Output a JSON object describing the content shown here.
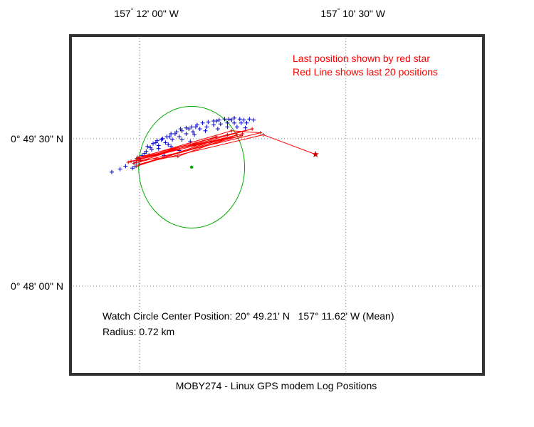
{
  "chart_data": {
    "type": "scatter",
    "title": "MOBY274 - Linux GPS modem Log Positions",
    "xlabel": "",
    "ylabel": "",
    "x_axis": {
      "unit": "minutes of longitude past 157 deg W",
      "ticks": [
        {
          "value": 12.0,
          "deg": "157",
          "min": "12' 00\" W"
        },
        {
          "value": 10.5,
          "deg": "157",
          "min": "10' 30\" W"
        }
      ],
      "xlim": [
        12.5,
        9.5
      ],
      "tick_label_position": "top"
    },
    "y_axis": {
      "unit": "minutes of latitude past 20 deg N",
      "ticks": [
        {
          "value": 49.5,
          "label": "0° 49' 30\" N"
        },
        {
          "value": 48.0,
          "label": "0° 48' 00\" N"
        }
      ],
      "ylim": [
        47.1,
        50.55
      ]
    },
    "grid": true,
    "annotations": [
      {
        "text": "Last position shown by red star",
        "color": "#ff0000"
      },
      {
        "text": "Red Line shows last 20 positions",
        "color": "#ff0000"
      }
    ],
    "info_lines": [
      "Watch Circle Center Position: 20° 49.21' N   157° 11.62' W (Mean)",
      "Radius: 0.72 km"
    ],
    "watch_circle": {
      "center_lon_min": 11.62,
      "center_lat_min": 49.21,
      "radius_lat_min": 0.62,
      "radius_lon_min": 0.385,
      "color": "#00aa00"
    },
    "series": [
      {
        "marker": "plus",
        "color": "#0000cc",
        "points": [
          [
            12.2,
            49.16
          ],
          [
            12.14,
            49.19
          ],
          [
            12.1,
            49.22
          ],
          [
            12.05,
            49.2
          ],
          [
            12.02,
            49.26
          ],
          [
            11.98,
            49.33
          ],
          [
            11.95,
            49.37
          ],
          [
            11.92,
            49.41
          ],
          [
            11.9,
            49.45
          ],
          [
            11.87,
            49.48
          ],
          [
            11.83,
            49.5
          ],
          [
            11.8,
            49.52
          ],
          [
            11.77,
            49.55
          ],
          [
            11.73,
            49.57
          ],
          [
            11.7,
            49.6
          ],
          [
            11.66,
            49.61
          ],
          [
            11.62,
            49.62
          ],
          [
            11.58,
            49.64
          ],
          [
            11.54,
            49.66
          ],
          [
            11.5,
            49.67
          ],
          [
            11.46,
            49.68
          ],
          [
            11.42,
            49.69
          ],
          [
            11.38,
            49.7
          ],
          [
            11.35,
            49.7
          ],
          [
            11.31,
            49.71
          ],
          [
            11.27,
            49.7
          ],
          [
            11.24,
            49.69
          ],
          [
            11.2,
            49.7
          ],
          [
            11.17,
            49.69
          ],
          [
            12.0,
            49.3
          ],
          [
            11.96,
            49.35
          ],
          [
            11.91,
            49.39
          ],
          [
            11.86,
            49.43
          ],
          [
            11.81,
            49.46
          ],
          [
            11.76,
            49.49
          ],
          [
            11.71,
            49.52
          ],
          [
            11.66,
            49.55
          ],
          [
            11.61,
            49.57
          ],
          [
            11.56,
            49.6
          ],
          [
            11.51,
            49.62
          ],
          [
            11.46,
            49.64
          ],
          [
            11.41,
            49.65
          ],
          [
            11.36,
            49.66
          ],
          [
            11.31,
            49.66
          ],
          [
            11.26,
            49.66
          ],
          [
            11.94,
            49.42
          ],
          [
            11.88,
            49.46
          ],
          [
            11.84,
            49.49
          ],
          [
            11.78,
            49.52
          ],
          [
            11.74,
            49.55
          ],
          [
            11.69,
            49.58
          ],
          [
            11.64,
            49.6
          ],
          [
            11.59,
            49.62
          ],
          [
            11.44,
            49.68
          ],
          [
            11.33,
            49.69
          ],
          [
            11.22,
            49.66
          ],
          [
            11.99,
            49.28
          ],
          [
            12.03,
            49.22
          ],
          [
            11.93,
            49.33
          ],
          [
            11.86,
            49.4
          ],
          [
            11.79,
            49.44
          ],
          [
            11.69,
            49.49
          ],
          [
            11.6,
            49.54
          ],
          [
            11.52,
            49.58
          ],
          [
            11.43,
            49.6
          ],
          [
            11.36,
            49.62
          ],
          [
            11.29,
            49.62
          ],
          [
            11.23,
            49.61
          ],
          [
            11.77,
            49.42
          ],
          [
            11.63,
            49.47
          ],
          [
            11.82,
            49.33
          ],
          [
            11.71,
            49.38
          ]
        ]
      },
      {
        "marker": "plus",
        "color": "#cc0000",
        "line": true,
        "points": [
          [
            12.01,
            49.31
          ],
          [
            11.36,
            49.54
          ],
          [
            11.18,
            49.6
          ],
          [
            12.08,
            49.26
          ],
          [
            11.25,
            49.55
          ],
          [
            12.02,
            49.3
          ],
          [
            11.33,
            49.58
          ],
          [
            11.12,
            49.56
          ],
          [
            12.04,
            49.25
          ],
          [
            11.44,
            49.52
          ],
          [
            12.06,
            49.27
          ],
          [
            11.72,
            49.32
          ],
          [
            11.29,
            49.54
          ],
          [
            12.02,
            49.22
          ],
          [
            11.48,
            49.47
          ],
          [
            11.6,
            49.43
          ],
          [
            11.26,
            49.53
          ],
          [
            12.0,
            49.24
          ],
          [
            11.1,
            49.54
          ],
          [
            10.72,
            49.34
          ]
        ]
      }
    ],
    "last_position": {
      "lon_min": 10.72,
      "lat_min": 49.34,
      "marker": "star",
      "color": "#cc0000"
    }
  }
}
